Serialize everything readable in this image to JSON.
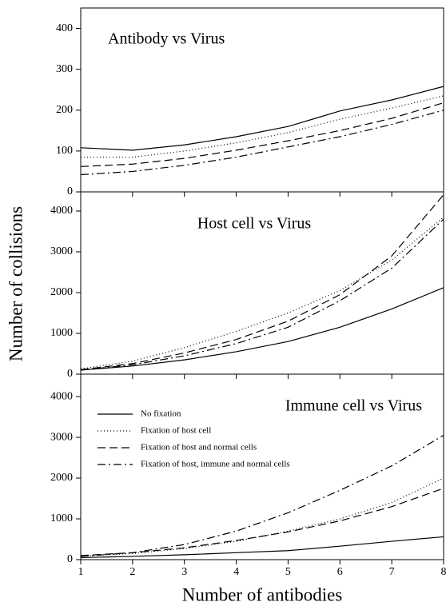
{
  "ylabel": "Number of collisions",
  "xlabel": "Number of antibodies",
  "chart_data": [
    {
      "type": "line",
      "title": "Antibody vs Virus",
      "x": [
        1,
        2,
        3,
        4,
        5,
        6,
        7,
        8
      ],
      "xlim": [
        1,
        8
      ],
      "xticks": [
        1,
        2,
        3,
        4,
        5,
        6,
        7,
        8
      ],
      "xtick_labels": false,
      "ylim": [
        0,
        450
      ],
      "yticks": [
        0,
        100,
        200,
        300,
        400
      ],
      "series": [
        {
          "color": "#000000",
          "dash": "solid",
          "values": [
            108,
            102,
            115,
            135,
            160,
            198,
            225,
            258
          ]
        },
        {
          "color": "#000000",
          "dash": "dotted",
          "values": [
            85,
            85,
            100,
            120,
            145,
            178,
            205,
            235
          ]
        },
        {
          "color": "#000000",
          "dash": "dashed",
          "values": [
            62,
            68,
            82,
            102,
            125,
            150,
            180,
            218
          ]
        },
        {
          "color": "#000000",
          "dash": "dashdot",
          "values": [
            42,
            50,
            65,
            85,
            110,
            135,
            165,
            200
          ]
        }
      ]
    },
    {
      "type": "line",
      "title": "Host cell vs Virus",
      "x": [
        1,
        2,
        3,
        4,
        5,
        6,
        7,
        8
      ],
      "xlim": [
        1,
        8
      ],
      "xticks": [
        1,
        2,
        3,
        4,
        5,
        6,
        7,
        8
      ],
      "xtick_labels": false,
      "ylim": [
        0,
        4470
      ],
      "yticks": [
        0,
        1000,
        2000,
        3000,
        4000
      ],
      "series": [
        {
          "color": "#000000",
          "dash": "solid",
          "values": [
            100,
            200,
            350,
            550,
            800,
            1150,
            1600,
            2120
          ]
        },
        {
          "color": "#000000",
          "dash": "dotted",
          "values": [
            130,
            320,
            650,
            1050,
            1500,
            2050,
            2800,
            3850
          ]
        },
        {
          "color": "#000000",
          "dash": "dashed",
          "values": [
            110,
            260,
            520,
            850,
            1300,
            1950,
            2900,
            4400
          ]
        },
        {
          "color": "#000000",
          "dash": "dashdot",
          "values": [
            100,
            230,
            450,
            750,
            1150,
            1800,
            2600,
            3800
          ]
        }
      ]
    },
    {
      "type": "line",
      "title": "Immune cell vs Virus",
      "x": [
        1,
        2,
        3,
        4,
        5,
        6,
        7,
        8
      ],
      "xlim": [
        1,
        8
      ],
      "xticks": [
        1,
        2,
        3,
        4,
        5,
        6,
        7,
        8
      ],
      "xtick_labels": true,
      "ylim": [
        0,
        4550
      ],
      "yticks": [
        0,
        1000,
        2000,
        3000,
        4000
      ],
      "legend": "upper left",
      "series": [
        {
          "name": "No fixation",
          "color": "#000000",
          "dash": "solid",
          "values": [
            50,
            80,
            120,
            170,
            220,
            330,
            450,
            560
          ]
        },
        {
          "name": "Fixation of host cell",
          "color": "#000000",
          "dash": "dotted",
          "values": [
            90,
            150,
            270,
            450,
            700,
            1000,
            1400,
            2000
          ]
        },
        {
          "name": "Fixation of host and normal cells",
          "color": "#000000",
          "dash": "dashed",
          "values": [
            100,
            170,
            290,
            470,
            680,
            950,
            1300,
            1750
          ]
        },
        {
          "name": "Fixation of host, immune and normal cells",
          "color": "#000000",
          "dash": "dashdot",
          "values": [
            80,
            170,
            370,
            700,
            1150,
            1700,
            2300,
            3050
          ]
        }
      ]
    }
  ]
}
